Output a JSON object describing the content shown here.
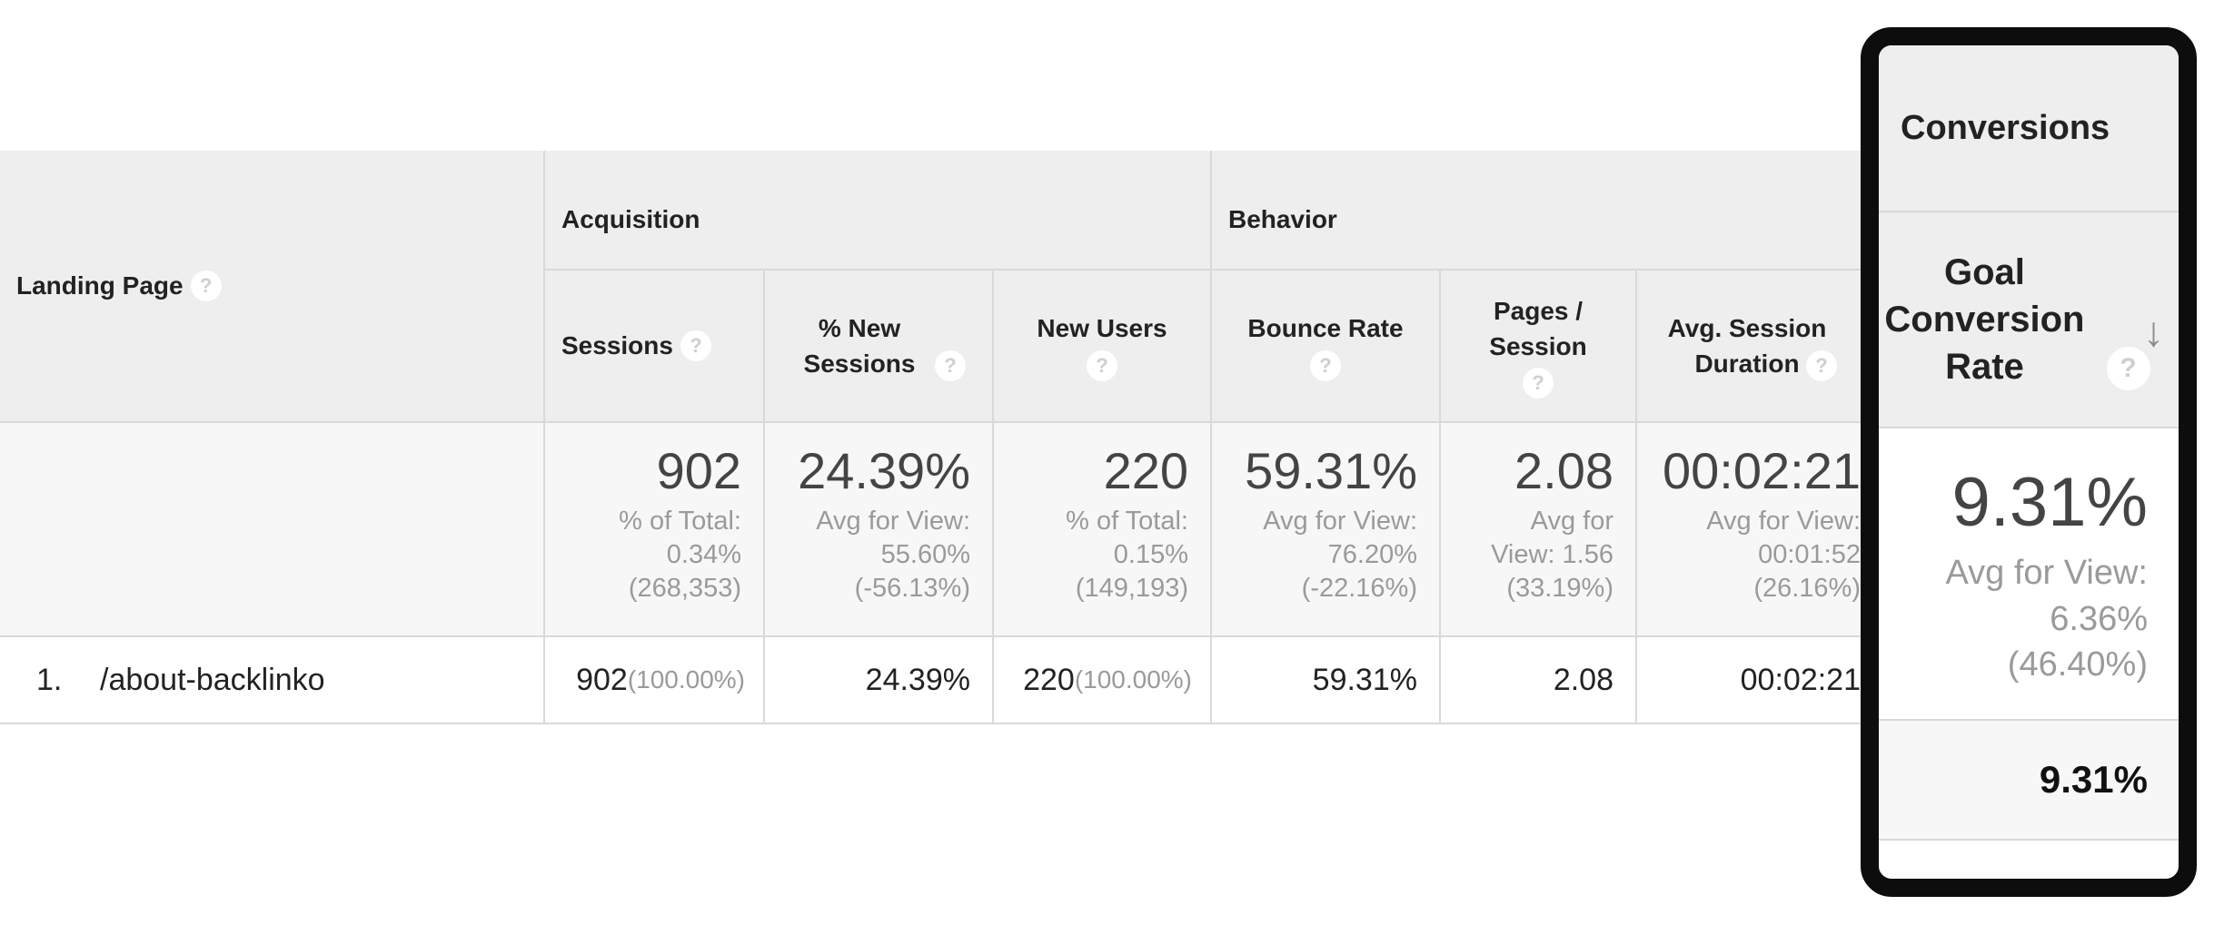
{
  "table": {
    "dimension": {
      "label": "Landing Page",
      "help": "?"
    },
    "groups": {
      "acquisition": "Acquisition",
      "behavior": "Behavior",
      "conversions": "Conversions"
    },
    "columns": {
      "sessions": "Sessions",
      "new_sessions": "% New Sessions",
      "new_users": "New Users",
      "bounce_rate": "Bounce Rate",
      "pages_session": "Pages / Session",
      "avg_duration": "Avg. Session Duration",
      "goal_conv_rate": "Goal Conversion Rate"
    },
    "summary": {
      "sessions": {
        "value": "902",
        "sub1": "% of Total:",
        "sub2": "0.34%",
        "sub3": "(268,353)"
      },
      "new_sessions": {
        "value": "24.39%",
        "sub1": "Avg for View:",
        "sub2": "55.60%",
        "sub3": "(-56.13%)"
      },
      "new_users": {
        "value": "220",
        "sub1": "% of Total:",
        "sub2": "0.15%",
        "sub3": "(149,193)"
      },
      "bounce_rate": {
        "value": "59.31%",
        "sub1": "Avg for View:",
        "sub2": "76.20%",
        "sub3": "(-22.16%)"
      },
      "pages_session": {
        "value": "2.08",
        "sub1": "Avg for",
        "sub2": "View: 1.56",
        "sub3": "(33.19%)"
      },
      "avg_duration": {
        "value": "00:02:21",
        "sub1": "Avg for View:",
        "sub2": "00:01:52",
        "sub3": "(26.16%)"
      },
      "goal_conv_rate": {
        "value": "9.31%",
        "sub1": "Avg for View:",
        "sub2": "6.36%",
        "sub3": "(46.40%)"
      }
    },
    "rows": [
      {
        "index": "1.",
        "page": "/about-backlinko",
        "sessions": "902",
        "sessions_pct": "(100.00%)",
        "new_sessions": "24.39%",
        "new_users": "220",
        "new_users_pct": "(100.00%)",
        "bounce_rate": "59.31%",
        "pages_session": "2.08",
        "avg_duration": "00:02:21",
        "goal_conv_rate": "9.31%"
      }
    ]
  },
  "icons": {
    "help": "question-circle-icon",
    "sort": "arrow-down-icon"
  },
  "colors": {
    "header_bg": "#eeeeee",
    "summary_bg": "#f7f7f7",
    "border": "#d9d9d9",
    "muted_text": "#9a9a9a",
    "highlight_border": "#0d0d0d"
  }
}
